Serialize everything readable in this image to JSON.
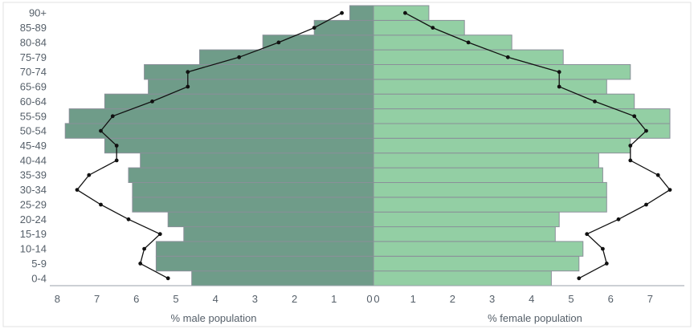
{
  "chart_data": {
    "type": "bar",
    "orientation": "horizontal",
    "subtype": "population-pyramid",
    "categories": [
      "0-4",
      "5-9",
      "10-14",
      "15-19",
      "20-24",
      "25-29",
      "30-34",
      "35-39",
      "40-44",
      "45-49",
      "50-54",
      "55-59",
      "60-64",
      "65-69",
      "70-74",
      "75-79",
      "80-84",
      "85-89",
      "90+"
    ],
    "series": [
      {
        "side": "male",
        "kind": "bar",
        "color": "#6f9c89",
        "values": [
          4.6,
          5.5,
          5.5,
          4.8,
          5.2,
          6.1,
          6.1,
          6.2,
          5.9,
          6.8,
          7.8,
          7.7,
          6.8,
          5.7,
          5.8,
          4.4,
          2.8,
          1.5,
          0.6
        ]
      },
      {
        "side": "female",
        "kind": "bar",
        "color": "#93cfa4",
        "values": [
          4.5,
          5.2,
          5.3,
          4.6,
          4.7,
          5.9,
          5.9,
          5.8,
          5.7,
          6.5,
          7.5,
          7.5,
          6.6,
          5.9,
          6.5,
          4.8,
          3.5,
          2.3,
          1.4
        ]
      },
      {
        "side": "male",
        "kind": "line",
        "color": "#111111",
        "values": [
          5.2,
          5.9,
          5.8,
          5.4,
          6.2,
          6.9,
          7.5,
          7.2,
          6.5,
          6.5,
          6.9,
          6.6,
          5.6,
          4.7,
          4.7,
          3.4,
          2.4,
          1.5,
          0.8
        ]
      },
      {
        "side": "female",
        "kind": "line",
        "color": "#111111",
        "values": [
          5.2,
          5.9,
          5.8,
          5.4,
          6.2,
          6.9,
          7.5,
          7.2,
          6.5,
          6.5,
          6.9,
          6.6,
          5.6,
          4.7,
          4.7,
          3.4,
          2.4,
          1.5,
          0.8
        ]
      }
    ],
    "x_ticks_male": [
      "8",
      "7",
      "6",
      "5",
      "4",
      "3",
      "2",
      "1",
      "0"
    ],
    "x_ticks_female": [
      "0",
      "1",
      "2",
      "3",
      "4",
      "5",
      "6",
      "7"
    ],
    "xlabel_male": "% male population",
    "xlabel_female": "% female population",
    "xlim_male": [
      0,
      8
    ],
    "xlim_female": [
      0,
      7.6
    ],
    "grid": false,
    "legend": "none",
    "colors": {
      "male_bar": "#6f9c89",
      "female_bar": "#93cfa4",
      "bar_stroke": "#8a8f99",
      "line": "#111111",
      "text": "#555f69",
      "axis": "#9aa2aa",
      "frame": "#e2e2e2"
    }
  }
}
